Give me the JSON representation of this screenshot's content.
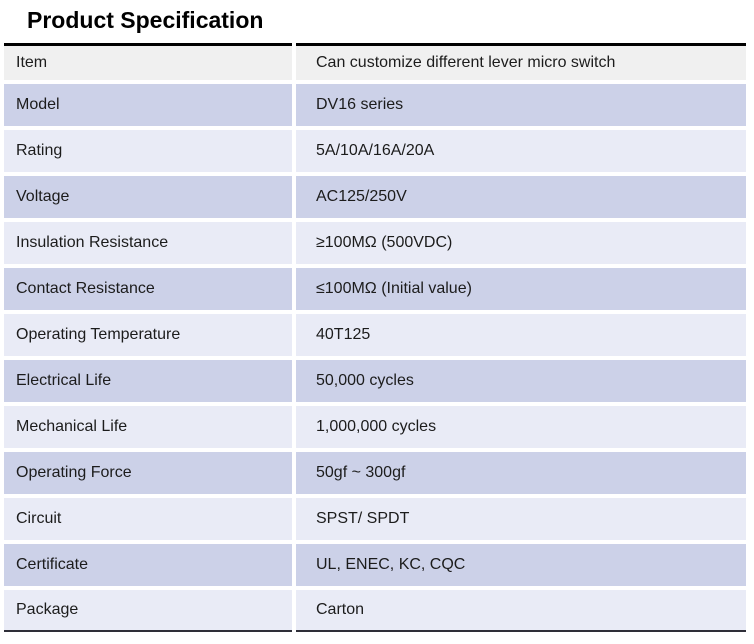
{
  "page": {
    "title": "Product Specification"
  },
  "colors": {
    "row_lavender": "#ccd1e8",
    "row_light_lavender": "#e9ebf6",
    "header_row_gray": "#f0f0f0",
    "table_top_border": "#000000",
    "table_bottom_border": "#2e2e38",
    "text": "#1c1c1c"
  },
  "table": {
    "header": {
      "item_label": "Item",
      "value_label": "Can customize different lever micro switch"
    },
    "rows": [
      {
        "label": "Model",
        "value": "DV16 series"
      },
      {
        "label": "Rating",
        "value": "5A/10A/16A/20A"
      },
      {
        "label": "Voltage",
        "value": "AC125/250V"
      },
      {
        "label": "Insulation Resistance",
        "value": "≥100MΩ (500VDC)"
      },
      {
        "label": "Contact Resistance",
        "value": "≤100MΩ (Initial value)"
      },
      {
        "label": "Operating Temperature",
        "value": "40T125"
      },
      {
        "label": "Electrical Life",
        "value": "50,000 cycles"
      },
      {
        "label": "Mechanical Life",
        "value": "1,000,000 cycles"
      },
      {
        "label": "Operating Force",
        "value": "50gf ~ 300gf"
      },
      {
        "label": "Circuit",
        "value": "SPST/ SPDT"
      },
      {
        "label": "Certificate",
        "value": "UL, ENEC, KC, CQC"
      },
      {
        "label": "Package",
        "value": "Carton"
      }
    ]
  }
}
